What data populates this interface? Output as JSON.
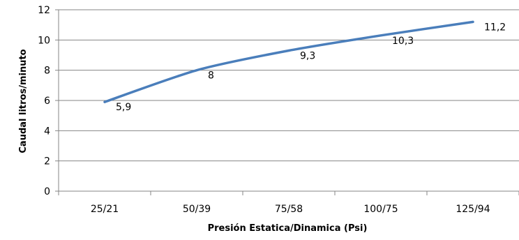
{
  "chart_data": {
    "type": "line",
    "categories": [
      "25/21",
      "50/39",
      "75/58",
      "100/75",
      "125/94"
    ],
    "series": [
      {
        "values": [
          5.9,
          8,
          9.3,
          10.3,
          11.2
        ],
        "labels": [
          "5,9",
          "8",
          "9,3",
          "10,3",
          "11,2"
        ],
        "color": "#4a7ebb"
      }
    ],
    "xlabel": "Presión Estatica/Dinamica  (Psi)",
    "ylabel": "Caudal litros/minuto",
    "ylim": [
      0,
      12
    ],
    "yticks": [
      0,
      2,
      4,
      6,
      8,
      10,
      12
    ],
    "grid": "horizontal",
    "legend": "none"
  }
}
